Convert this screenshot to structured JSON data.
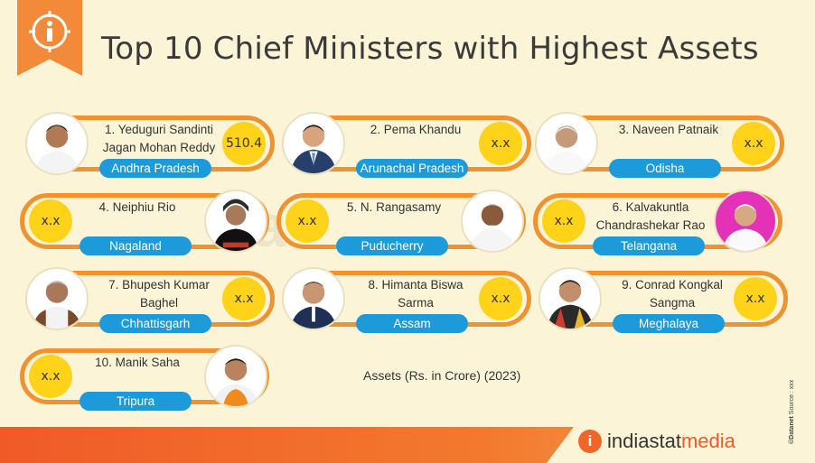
{
  "title": "Top 10 Chief Ministers with Highest Assets",
  "watermark": {
    "part1": "indiastat",
    "part2": "media"
  },
  "legend": "Assets (Rs. in Crore) (2023)",
  "side_note": {
    "source_label": "Source : xxx",
    "brand": "©Datanet"
  },
  "brand": {
    "part1": "indiastat",
    "part2": "media",
    "icon": "info-icon"
  },
  "colors": {
    "accent": "#f0922f",
    "badge": "#ffd31a",
    "state": "#1d9ad9",
    "background": "#fbf4d6",
    "footer": "#f05a28"
  },
  "ministers": [
    {
      "rank_name": "1. Yeduguri Sandinti Jagan Mohan Reddy",
      "line1": "1. Yeduguri Sandinti",
      "line2": "Jagan Mohan Reddy",
      "state": "Andhra Pradesh",
      "value": "510.4"
    },
    {
      "rank_name": "2. Pema Khandu",
      "line1": "2. Pema Khandu",
      "line2": "",
      "state": "Arunachal Pradesh",
      "value": "x.x"
    },
    {
      "rank_name": "3. Naveen Patnaik",
      "line1": "3. Naveen Patnaik",
      "line2": "",
      "state": "Odisha",
      "value": "x.x"
    },
    {
      "rank_name": "4. Neiphiu Rio",
      "line1": "4. Neiphiu Rio",
      "line2": "",
      "state": "Nagaland",
      "value": "x.x"
    },
    {
      "rank_name": "5. N. Rangasamy",
      "line1": "5. N. Rangasamy",
      "line2": "",
      "state": "Puducherry",
      "value": "x.x"
    },
    {
      "rank_name": "6. Kalvakuntla Chandrashekar Rao",
      "line1": "6. Kalvakuntla",
      "line2": "Chandrashekar Rao",
      "state": "Telangana",
      "value": "x.x"
    },
    {
      "rank_name": "7. Bhupesh Kumar Baghel",
      "line1": "7. Bhupesh Kumar",
      "line2": "Baghel",
      "state": "Chhattisgarh",
      "value": "x.x"
    },
    {
      "rank_name": "8. Himanta Biswa Sarma",
      "line1": "8. Himanta Biswa",
      "line2": "Sarma",
      "state": "Assam",
      "value": "x.x"
    },
    {
      "rank_name": "9. Conrad Kongkal Sangma",
      "line1": "9. Conrad Kongkal",
      "line2": "Sangma",
      "state": "Meghalaya",
      "value": "x.x"
    },
    {
      "rank_name": "10. Manik Saha",
      "line1": "10. Manik Saha",
      "line2": "",
      "state": "Tripura",
      "value": "x.x"
    }
  ]
}
